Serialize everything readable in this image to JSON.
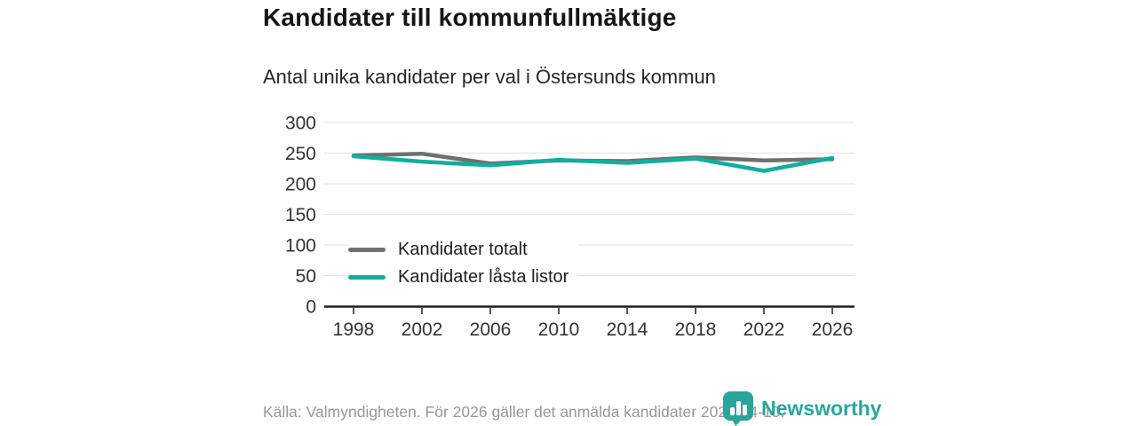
{
  "header": {
    "title": "Kandidater till kommunfullmäktige",
    "subtitle": "Antal unika kandidater per val i Östersunds kommun"
  },
  "chart_data": {
    "type": "line",
    "categories": [
      "1998",
      "2002",
      "2006",
      "2010",
      "2014",
      "2018",
      "2022",
      "2026"
    ],
    "series": [
      {
        "name": "Kandidater totalt",
        "color": "#6F6F6F",
        "values": [
          246,
          249,
          233,
          238,
          237,
          243,
          238,
          240
        ]
      },
      {
        "name": "Kandidater låsta listor",
        "color": "#12ADA0",
        "values": [
          245,
          236,
          230,
          239,
          234,
          241,
          221,
          242
        ]
      }
    ],
    "title": "Kandidater till kommunfullmäktige",
    "subtitle": "Antal unika kandidater per val i Östersunds kommun",
    "xlabel": "",
    "ylabel": "",
    "ylim": [
      0,
      300
    ],
    "yticks": [
      0,
      50,
      100,
      150,
      200,
      250,
      300
    ],
    "grid": true,
    "legend_position": "inside-bottom-left"
  },
  "footer": {
    "source": "Källa: Valmyndigheten. För 2026 gäller det anmälda kandidater 2026-04-10."
  },
  "branding": {
    "logo_text": "Newsworthy",
    "logo_icon": "bar-chart-speech-bubble-icon",
    "color": "#2BA59A"
  }
}
